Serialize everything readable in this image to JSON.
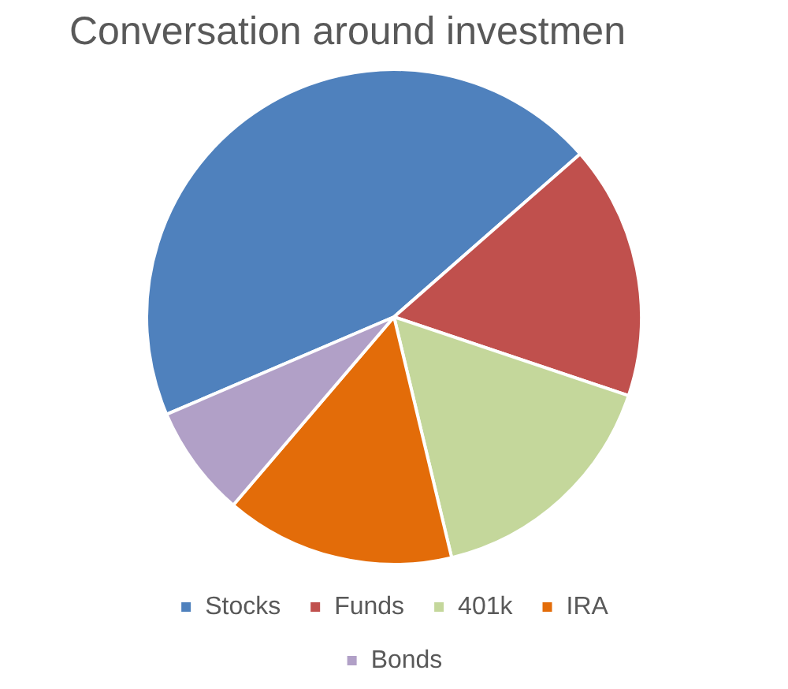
{
  "chart_data": {
    "type": "pie",
    "title": "Conversation around investmen",
    "categories": [
      "Stocks",
      "Funds",
      "401k",
      "IRA",
      "Bonds"
    ],
    "values": [
      45,
      16.6,
      16.1,
      15,
      7.3
    ],
    "colors": [
      "#4f81bd",
      "#c0504d",
      "#c4d79b",
      "#e36c09",
      "#b1a0c7"
    ],
    "legend": "bottom"
  }
}
